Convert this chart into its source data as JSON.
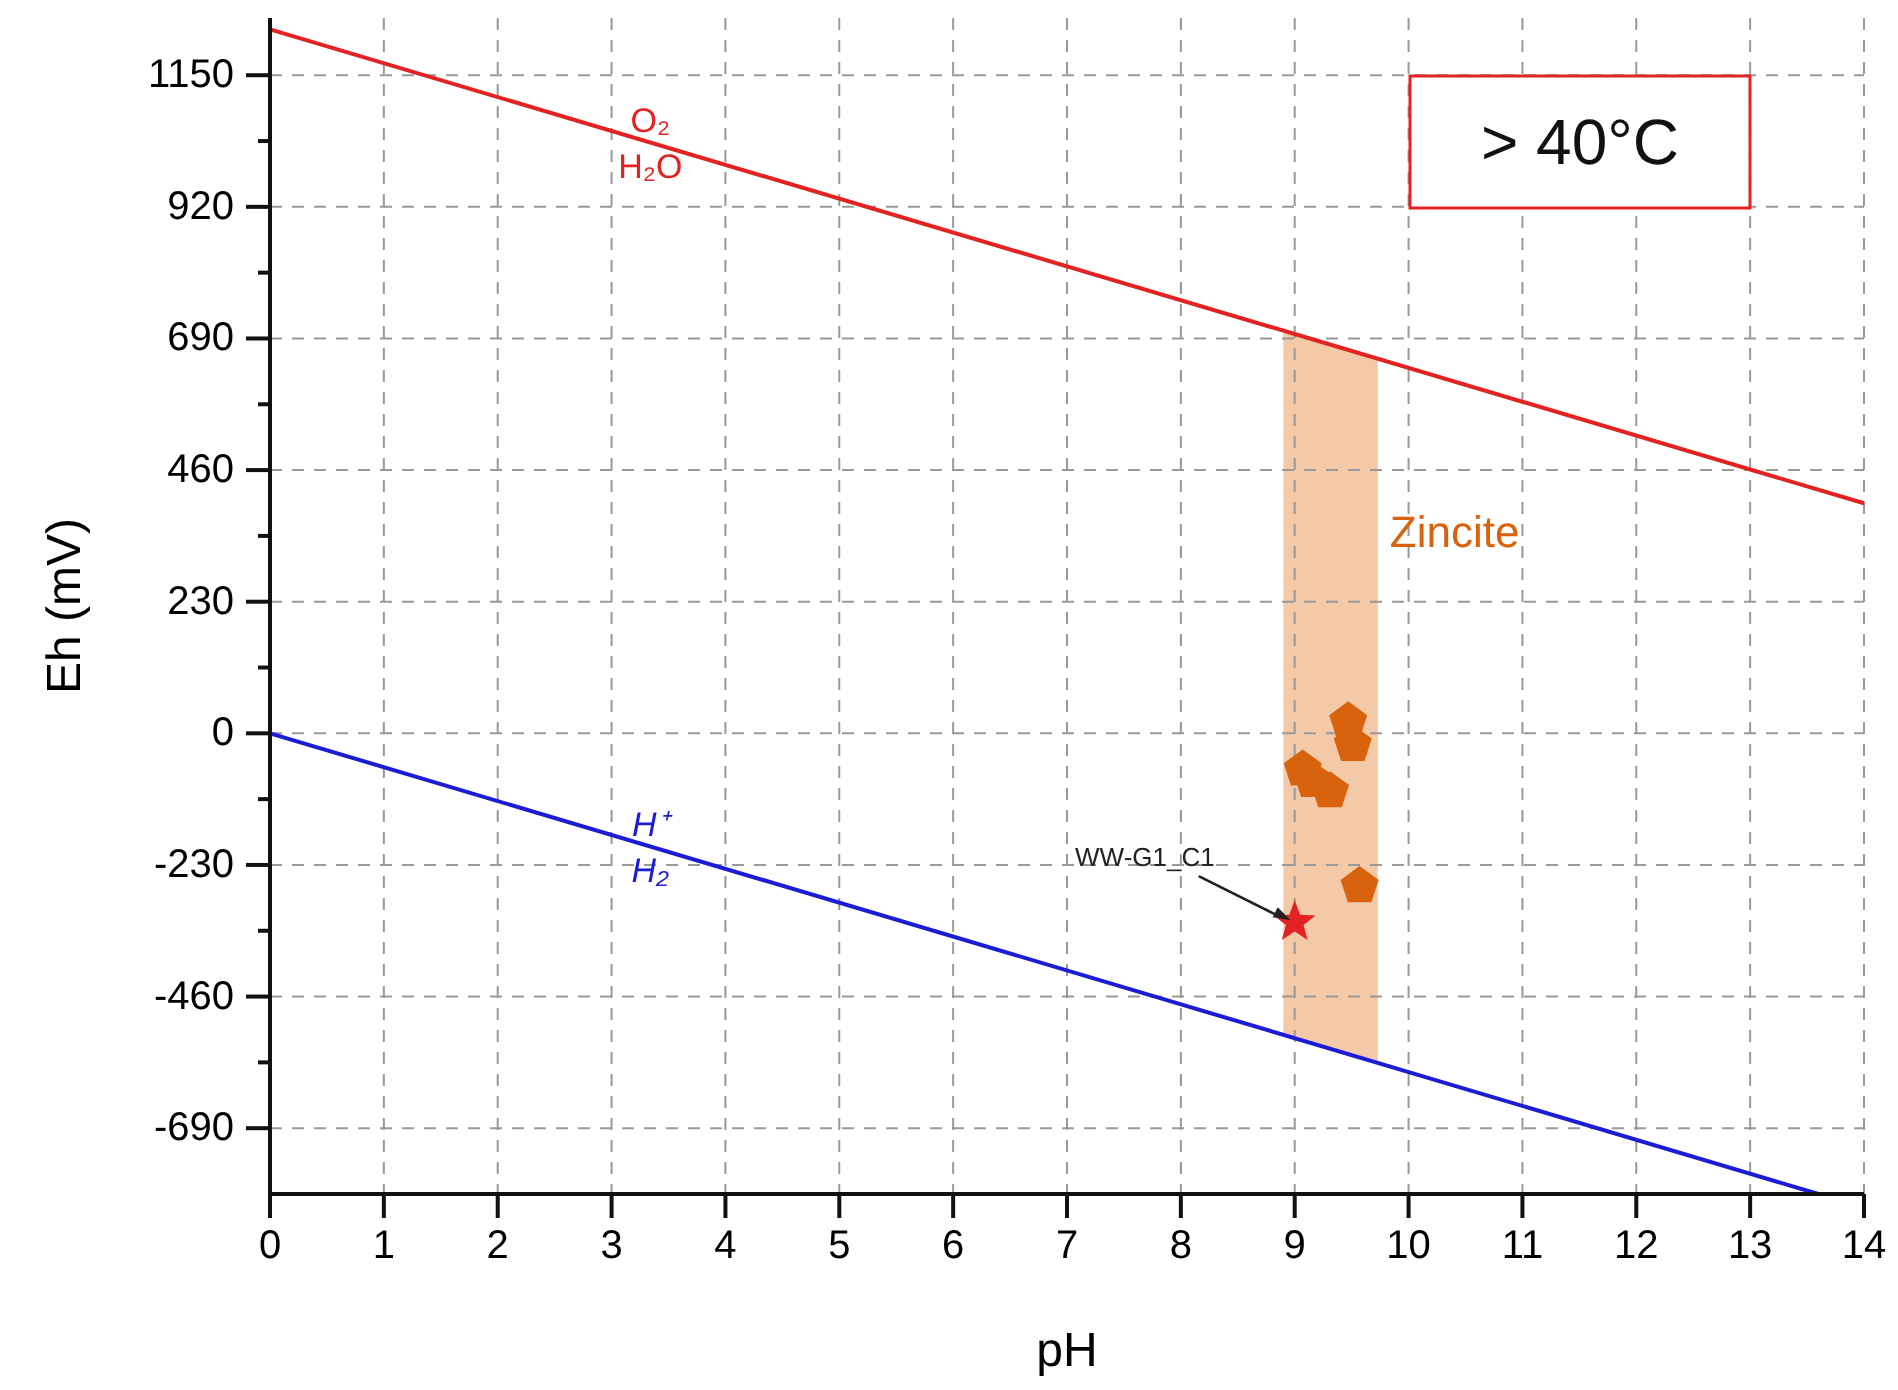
{
  "chart_data": {
    "type": "line",
    "xlabel": "pH",
    "ylabel": "Eh (mV)",
    "xlim": [
      0,
      14
    ],
    "xticks": [
      0,
      1,
      2,
      3,
      4,
      5,
      6,
      7,
      8,
      9,
      10,
      11,
      12,
      13,
      14
    ],
    "ylim": [
      -805,
      1250
    ],
    "yticks": [
      -690,
      {
        "value": -575,
        "label": null
      },
      -460,
      {
        "value": -345,
        "label": null
      },
      -230,
      {
        "value": -115,
        "label": null
      },
      0,
      {
        "value": 115,
        "label": null
      },
      230,
      {
        "value": 345,
        "label": null
      },
      460,
      {
        "value": 575,
        "label": null
      },
      690,
      {
        "value": 805,
        "label": null
      },
      920,
      {
        "value": 1035,
        "label": null
      },
      1150
    ],
    "grid": true,
    "series": [
      {
        "color": "#e32222",
        "x": [
          0,
          14
        ],
        "values": [
          1230,
          402
        ]
      },
      {
        "color": "#1c1cd4",
        "x": [
          0,
          13.6
        ],
        "values": [
          0,
          -805
        ]
      },
      {
        "type": "scatter",
        "color": "#d9620c",
        "x": [
          9.47,
          9.51,
          9.07,
          9.16,
          9.31,
          9.57
        ],
        "values": [
          21,
          -20,
          -63,
          -83,
          -101,
          -267
        ]
      },
      {
        "type": "scatter",
        "marker": "star",
        "color": "#e32222",
        "x": [
          9.0
        ],
        "values": [
          -330
        ]
      }
    ],
    "bands": [
      {
        "axis": "x",
        "from": 8.9,
        "to": 9.73,
        "label": "Zincite",
        "color": "#f4c9a8"
      }
    ],
    "annotations": [
      {
        "text": "WW-G1_C1",
        "x": 9.0,
        "y": -330
      },
      "> 40°C",
      "O₂",
      "H₂O",
      "H⁺",
      "H₂"
    ]
  }
}
